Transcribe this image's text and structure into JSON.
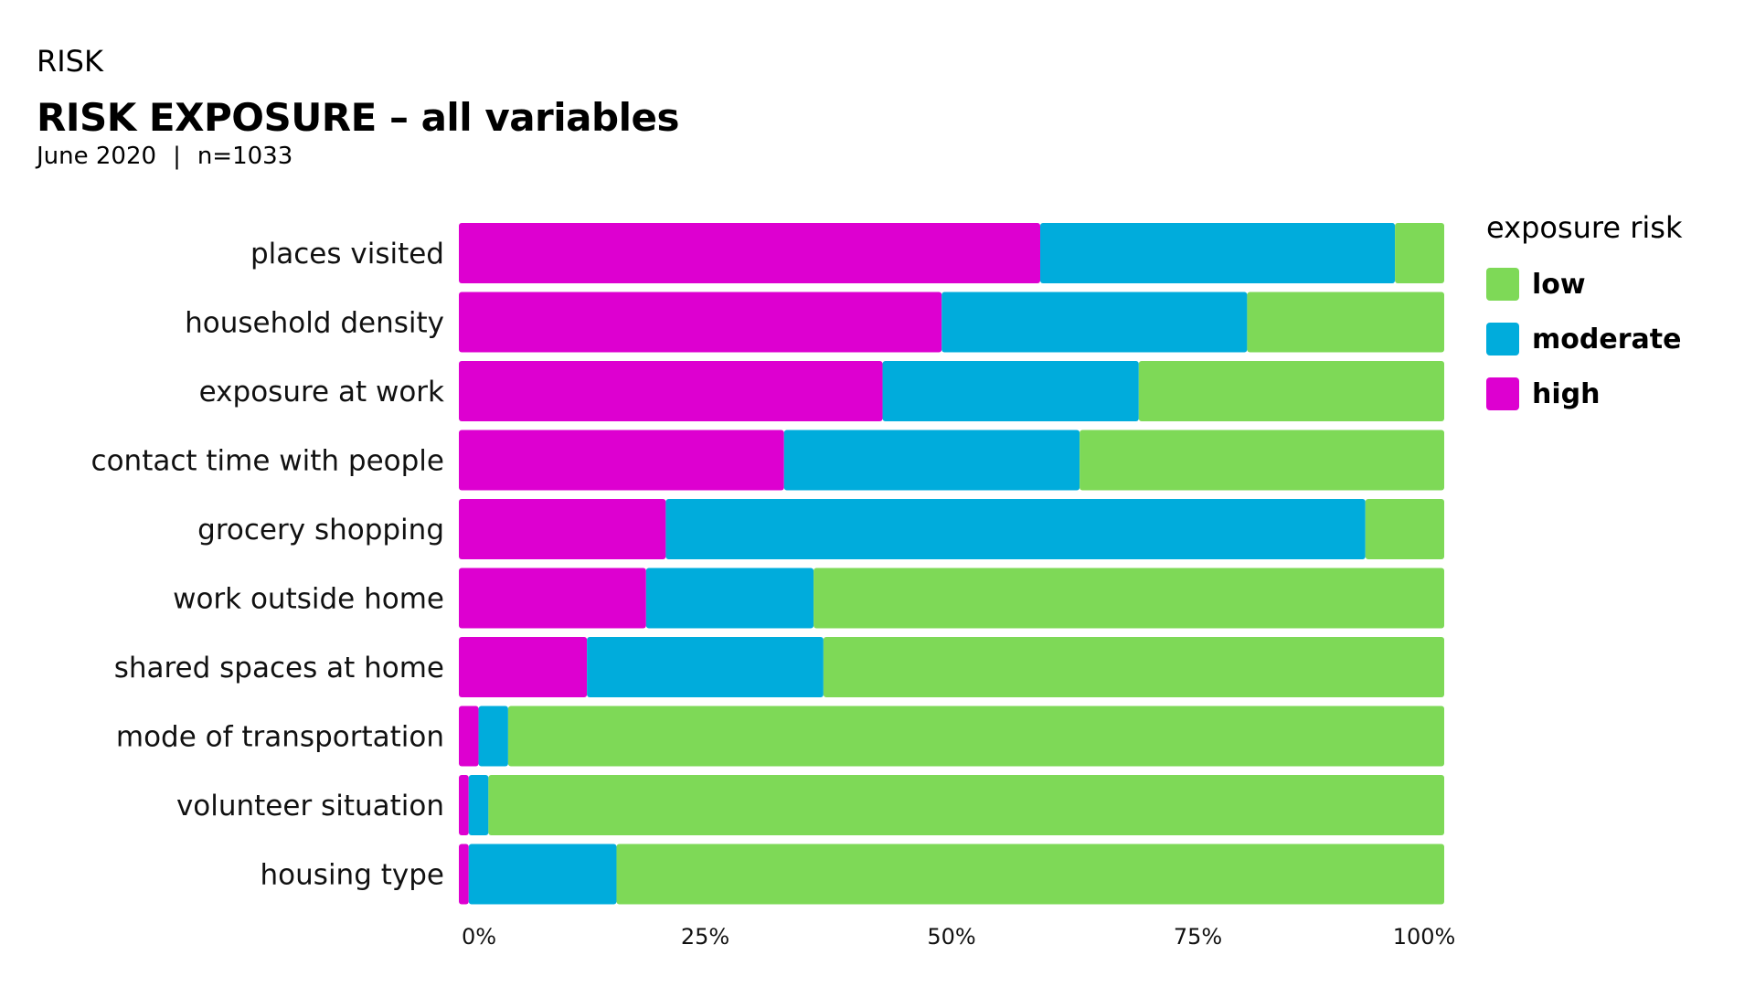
{
  "header": {
    "eyebrow": "RISK",
    "title": "RISK EXPOSURE – all variables",
    "date": "June 2020",
    "separator": "|",
    "n": "n=1033"
  },
  "legend": {
    "title": "exposure risk",
    "items": [
      {
        "label": " low",
        "color": "#7ED957"
      },
      {
        "label": "moderate",
        "color": "#00ACDC"
      },
      {
        "label": "high",
        "color": "#DD00D0"
      }
    ]
  },
  "chart_data": {
    "type": "bar",
    "orientation": "horizontal",
    "stacked": true,
    "categories": [
      "places visited",
      "household density",
      "exposure at work",
      "contact time with people",
      "grocery shopping",
      "work outside home",
      "shared spaces at home",
      "mode of transportation",
      "volunteer situation",
      "housing type"
    ],
    "series": [
      {
        "name": "high",
        "color": "#DD00D0",
        "values": [
          59,
          49,
          43,
          33,
          21,
          19,
          13,
          2,
          1,
          1
        ]
      },
      {
        "name": "moderate",
        "color": "#00ACDC",
        "values": [
          36,
          31,
          26,
          30,
          71,
          17,
          24,
          3,
          2,
          15
        ]
      },
      {
        "name": "low",
        "color": "#7ED957",
        "values": [
          5,
          20,
          31,
          37,
          8,
          64,
          63,
          95,
          97,
          84
        ]
      }
    ],
    "xlim": [
      0,
      100
    ],
    "xticks": [
      "0%",
      "25%",
      "50%",
      "75%",
      "100%"
    ],
    "legend_position": "top-right"
  }
}
